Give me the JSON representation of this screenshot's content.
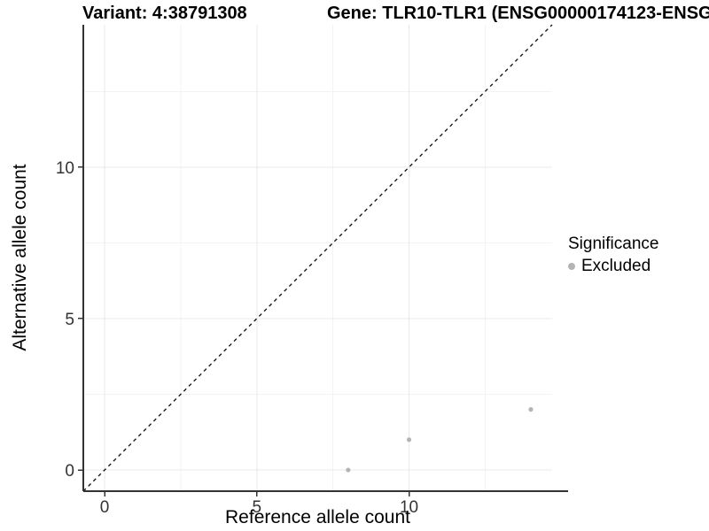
{
  "header": {
    "variant_label": "Variant: 4:38791308",
    "gene_label": "Gene: TLR10-TLR1 (ENSG00000174123-ENSG"
  },
  "chart_data": {
    "type": "scatter",
    "title": "Variant: 4:38791308  /  Gene: TLR10-TLR1 (ENSG00000174123-ENSG",
    "xlabel": "Reference allele count",
    "ylabel": "Alternative allele count",
    "xlim": [
      -0.7,
      14.7
    ],
    "ylim": [
      -0.7,
      14.7
    ],
    "xticks": [
      0,
      5,
      10
    ],
    "yticks": [
      0,
      5,
      10
    ],
    "minor_xticks": [
      2.5,
      7.5,
      12.5
    ],
    "minor_yticks": [
      2.5,
      7.5,
      12.5
    ],
    "grid": true,
    "legend_position": "right",
    "reference_line": {
      "type": "identity",
      "slope": 1,
      "intercept": 0,
      "style": "dashed",
      "color": "#1a1a1a"
    },
    "series": [
      {
        "name": "Excluded",
        "color": "#b4b4b4",
        "points": [
          {
            "x": 8,
            "y": 0
          },
          {
            "x": 10,
            "y": 1
          },
          {
            "x": 14,
            "y": 2
          }
        ]
      }
    ],
    "legend": {
      "title": "Significance",
      "items": [
        {
          "label": "Excluded",
          "color": "#b4b4b4"
        }
      ]
    },
    "style_colors": {
      "axis_line": "#333333",
      "tick_label": "#333333",
      "grid_major": "#e9e9e9",
      "grid_minor": "#f3f3f3",
      "background": "#ffffff"
    }
  }
}
